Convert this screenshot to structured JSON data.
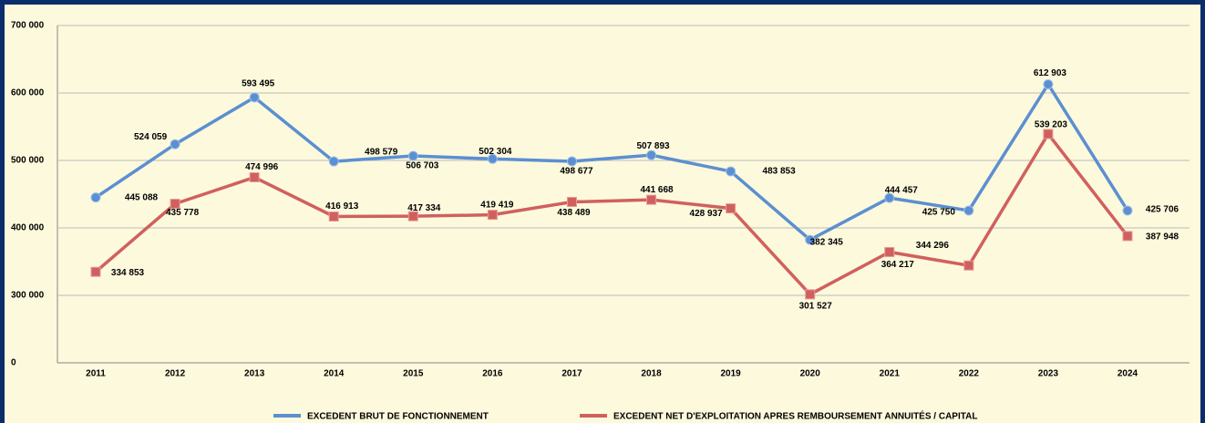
{
  "chart_data": {
    "type": "line",
    "categories": [
      "2011",
      "2012",
      "2013",
      "2014",
      "2015",
      "2016",
      "2017",
      "2018",
      "2019",
      "2020",
      "2021",
      "2022",
      "2023",
      "2024"
    ],
    "series": [
      {
        "name": "EXCEDENT BRUT DE FONCTIONNEMENT",
        "color": "#5b8fd1",
        "values": [
          445088,
          524059,
          593495,
          498579,
          506703,
          502304,
          498677,
          507893,
          483853,
          382345,
          444457,
          425750,
          612903,
          425706
        ],
        "value_labels": [
          "445 088",
          "524 059",
          "593 495",
          "498 579",
          "506 703",
          "502 304",
          "498 677",
          "507 893",
          "483 853",
          "382 345",
          "444 457",
          "425 750",
          "612 903",
          "425 706"
        ]
      },
      {
        "name": "EXCEDENT NET D'EXPLOITATION APRES REMBOURSEMENT ANNUITÉS / CAPITAL",
        "color": "#d0605e",
        "values": [
          334853,
          435778,
          474996,
          416913,
          417334,
          419419,
          438489,
          441668,
          428937,
          301527,
          364217,
          344296,
          539203,
          387948
        ],
        "value_labels": [
          "334 853",
          "435 778",
          "474 996",
          "416 913",
          "417 334",
          "419 419",
          "438 489",
          "441 668",
          "428 937",
          "301 527",
          "364 217",
          "344 296",
          "539 203",
          "387 948"
        ]
      }
    ],
    "ylim": [
      0,
      700000
    ],
    "yticks": [
      0,
      {
        "value": 300000,
        "label": "300 000"
      },
      {
        "value": 400000,
        "label": "400 000"
      },
      {
        "value": 500000,
        "label": "500 000"
      },
      {
        "value": 600000,
        "label": "600 000"
      },
      {
        "value": 700000,
        "label": "700 000"
      }
    ],
    "grid": true
  }
}
